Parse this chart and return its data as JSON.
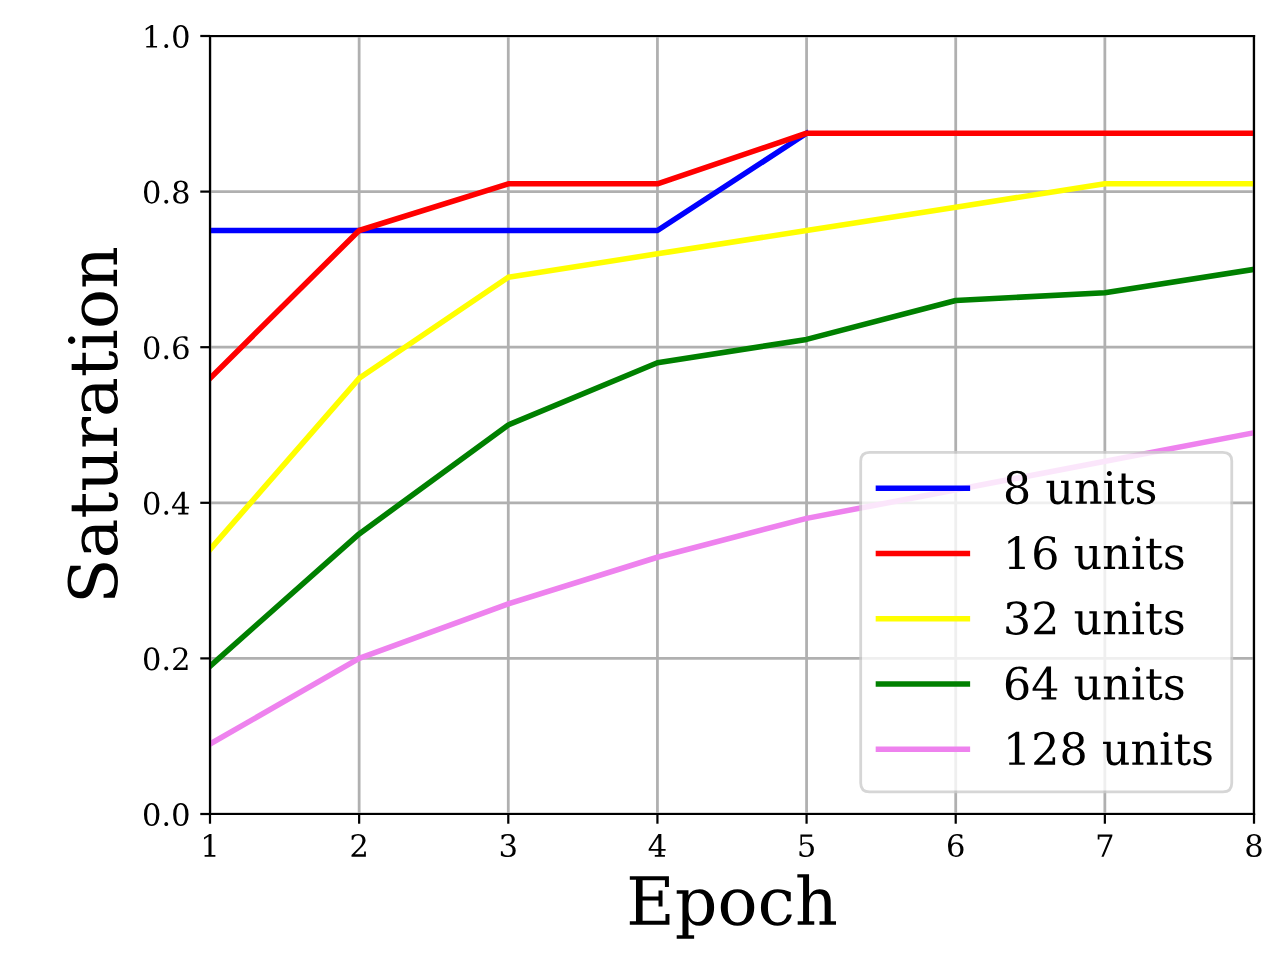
{
  "chart_data": {
    "type": "line",
    "xlabel": "Epoch",
    "ylabel": "Saturation",
    "x": [
      1,
      2,
      3,
      4,
      5,
      6,
      7,
      8
    ],
    "series": [
      {
        "name": "8 units",
        "color": "#0000ff",
        "values": [
          0.75,
          0.75,
          0.75,
          0.75,
          0.875,
          null,
          null,
          null
        ]
      },
      {
        "name": "16 units",
        "color": "#ff0000",
        "values": [
          0.56,
          0.75,
          0.81,
          0.81,
          0.875,
          0.875,
          0.875,
          0.875
        ]
      },
      {
        "name": "32 units",
        "color": "#ffff00",
        "values": [
          0.34,
          0.56,
          0.69,
          0.72,
          0.75,
          0.78,
          0.81,
          0.81
        ]
      },
      {
        "name": "64 units",
        "color": "#008000",
        "values": [
          0.19,
          0.36,
          0.5,
          0.58,
          0.61,
          0.66,
          0.67,
          0.7
        ]
      },
      {
        "name": "128 units",
        "color": "#ee82ee",
        "values": [
          0.09,
          0.2,
          0.27,
          0.33,
          0.38,
          null,
          null,
          0.49
        ]
      }
    ],
    "xlim": [
      1,
      8
    ],
    "xticks": [
      1,
      2,
      3,
      4,
      5,
      6,
      7,
      8
    ],
    "ylim": [
      0,
      1
    ],
    "yticks": [
      {
        "value": 0,
        "label": "0.0"
      },
      {
        "value": 0.2,
        "label": "0.2"
      },
      {
        "value": 0.4,
        "label": "0.4"
      },
      {
        "value": 0.6,
        "label": "0.6"
      },
      {
        "value": 0.8,
        "label": "0.8"
      },
      {
        "value": 1,
        "label": "1.0"
      }
    ],
    "grid": true,
    "legend": "bottom right",
    "marker": "none",
    "line_style": "solid"
  }
}
